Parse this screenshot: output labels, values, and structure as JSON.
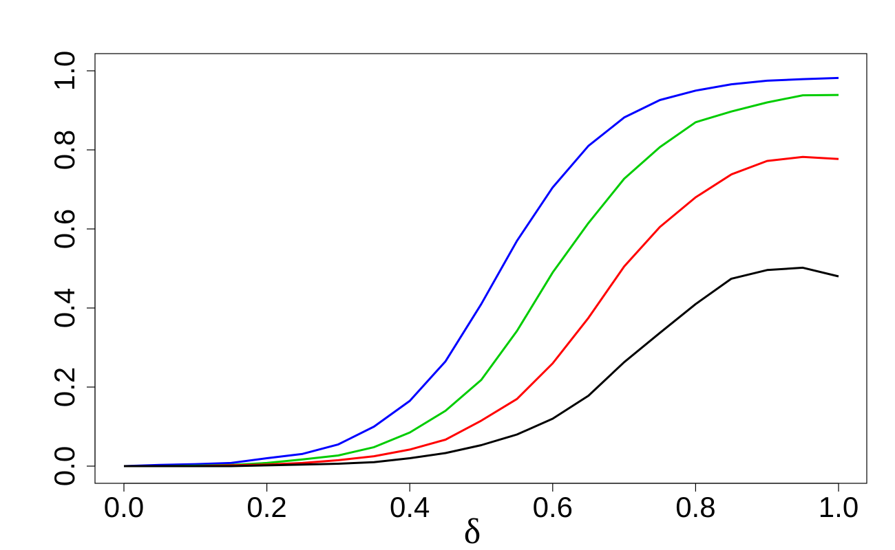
{
  "chart_data": {
    "type": "line",
    "title": "",
    "xlabel": "δ",
    "ylabel": "",
    "xlim": [
      0.0,
      1.0
    ],
    "ylim": [
      0.0,
      1.0
    ],
    "grid": false,
    "legend": "none",
    "x_ticks": [
      "0.0",
      "0.2",
      "0.4",
      "0.6",
      "0.8",
      "1.0"
    ],
    "y_ticks": [
      "0.0",
      "0.2",
      "0.4",
      "0.6",
      "0.8",
      "1.0"
    ],
    "x": [
      0.0,
      0.05,
      0.1,
      0.15,
      0.2,
      0.25,
      0.3,
      0.35,
      0.4,
      0.45,
      0.5,
      0.55,
      0.6,
      0.65,
      0.7,
      0.75,
      0.8,
      0.85,
      0.9,
      0.95,
      1.0
    ],
    "series": [
      {
        "color": "#0000ff",
        "values": [
          0.0,
          0.003,
          0.005,
          0.008,
          0.02,
          0.031,
          0.055,
          0.1,
          0.165,
          0.265,
          0.41,
          0.57,
          0.705,
          0.81,
          0.882,
          0.926,
          0.95,
          0.966,
          0.975,
          0.979,
          0.982
        ]
      },
      {
        "color": "#00cc00",
        "values": [
          0.0,
          0.0,
          0.001,
          0.003,
          0.008,
          0.017,
          0.027,
          0.048,
          0.085,
          0.14,
          0.218,
          0.342,
          0.49,
          0.615,
          0.727,
          0.807,
          0.87,
          0.897,
          0.92,
          0.938,
          0.939
        ]
      },
      {
        "color": "#ff0000",
        "values": [
          0.0,
          0.0,
          0.0,
          0.002,
          0.004,
          0.008,
          0.015,
          0.025,
          0.042,
          0.067,
          0.115,
          0.17,
          0.26,
          0.375,
          0.505,
          0.605,
          0.68,
          0.738,
          0.772,
          0.782,
          0.777
        ]
      },
      {
        "color": "#000000",
        "values": [
          0.0,
          0.0,
          0.0,
          0.0,
          0.002,
          0.004,
          0.006,
          0.01,
          0.02,
          0.033,
          0.053,
          0.08,
          0.12,
          0.178,
          0.263,
          0.337,
          0.41,
          0.474,
          0.496,
          0.502,
          0.48
        ]
      }
    ]
  }
}
